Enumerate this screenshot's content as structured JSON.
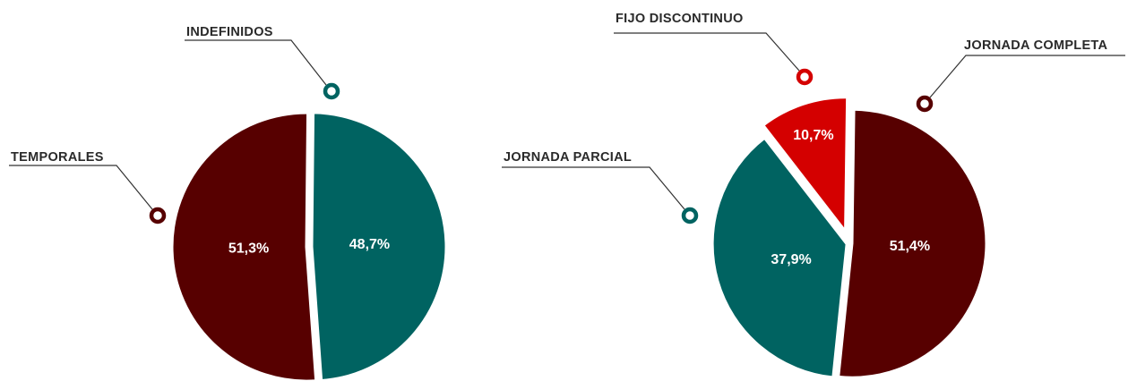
{
  "chart_data": [
    {
      "type": "pie",
      "categories": [
        "INDEFINIDOS",
        "TEMPORALES"
      ],
      "values": [
        48.7,
        51.3
      ],
      "value_labels": [
        "48,7%",
        "51,3%"
      ],
      "colors": [
        "#006361",
        "#570000"
      ]
    },
    {
      "type": "pie",
      "categories": [
        "JORNADA COMPLETA",
        "JORNADA PARCIAL",
        "FIJO DISCONTINUO"
      ],
      "values": [
        51.4,
        37.9,
        10.7
      ],
      "value_labels": [
        "51,4%",
        "37,9%",
        "10,7%"
      ],
      "colors": [
        "#570000",
        "#006361",
        "#d40000"
      ]
    }
  ]
}
